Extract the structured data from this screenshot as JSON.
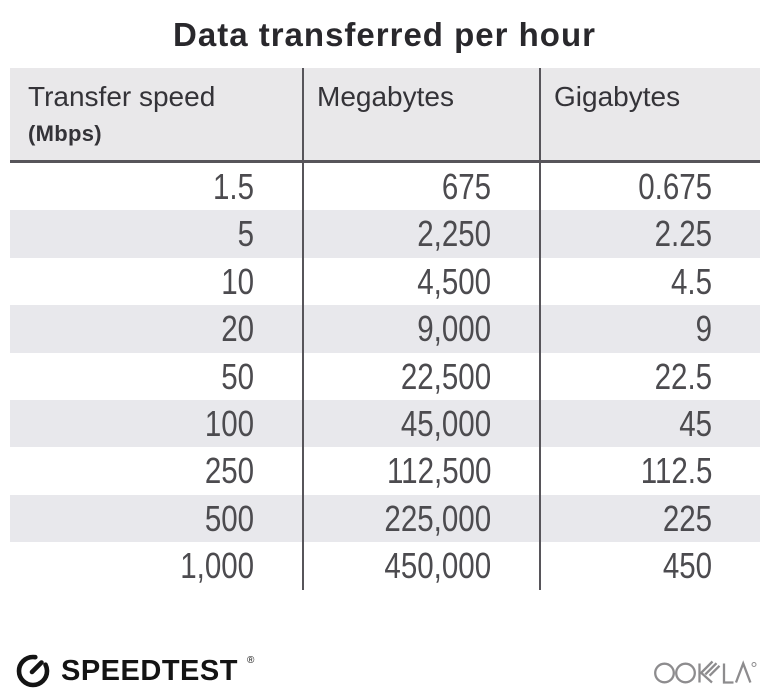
{
  "title": "Data transferred per hour",
  "table": {
    "columns": [
      {
        "label": "Transfer speed",
        "sublabel": "(Mbps)"
      },
      {
        "label": "Megabytes"
      },
      {
        "label": "Gigabytes"
      }
    ],
    "rows": [
      [
        "1.5",
        "675",
        "0.675"
      ],
      [
        "5",
        "2,250",
        "2.25"
      ],
      [
        "10",
        "4,500",
        "4.5"
      ],
      [
        "20",
        "9,000",
        "9"
      ],
      [
        "50",
        "22,500",
        "22.5"
      ],
      [
        "100",
        "45,000",
        "45"
      ],
      [
        "250",
        "112,500",
        "112.5"
      ],
      [
        "500",
        "225,000",
        "225"
      ],
      [
        "1,000",
        "450,000",
        "450"
      ]
    ]
  },
  "chart_data": {
    "type": "table",
    "title": "Data transferred per hour",
    "columns": [
      "Transfer speed (Mbps)",
      "Megabytes",
      "Gigabytes"
    ],
    "rows": [
      [
        1.5,
        675,
        0.675
      ],
      [
        5,
        2250,
        2.25
      ],
      [
        10,
        4500,
        4.5
      ],
      [
        20,
        9000,
        9
      ],
      [
        50,
        22500,
        22.5
      ],
      [
        100,
        45000,
        45
      ],
      [
        250,
        112500,
        112.5
      ],
      [
        500,
        225000,
        225
      ],
      [
        1000,
        450000,
        450
      ]
    ],
    "layout": {
      "zebra_striping": true,
      "numbers_right_aligned": true,
      "column_dividers": true
    }
  },
  "footer": {
    "speedtest_text": "SPEEDTEST",
    "speedtest_reg": "®",
    "ookla_text": "OOKLA",
    "ookla_reg": "®"
  },
  "icons": {
    "speedtest_logo": "speedometer-gauge-icon",
    "ookla_logo": "ookla-wordmark"
  },
  "colors": {
    "header_bg": "#e9e8ea",
    "row_alt_bg": "#e8e8ec",
    "divider": "#57555a",
    "title_text": "#29282c",
    "header_text": "#343338",
    "number_text": "#4c4b4f",
    "speedtest_black": "#141414",
    "ookla_gray": "#8d8c8e"
  }
}
